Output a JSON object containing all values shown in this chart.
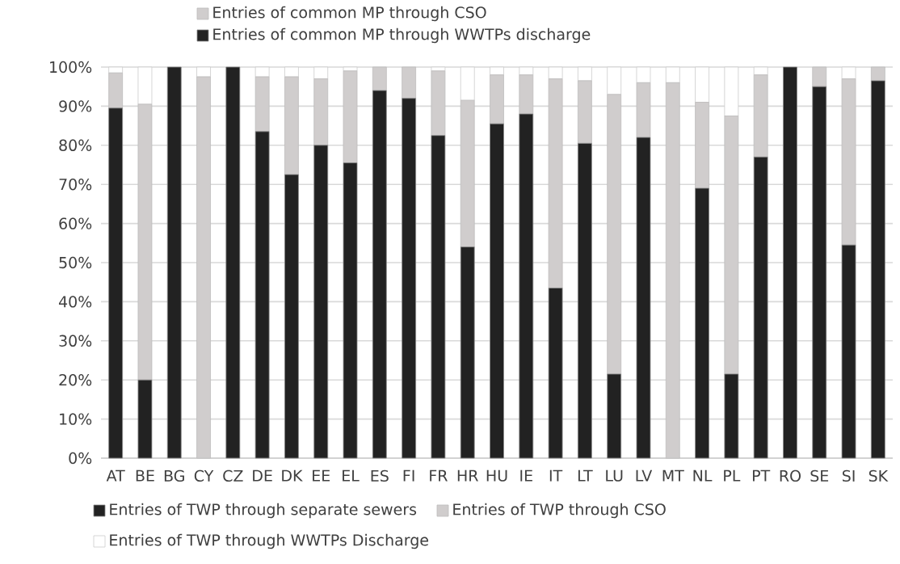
{
  "chart_data": {
    "type": "bar",
    "stacked": true,
    "categories": [
      "AT",
      "BE",
      "BG",
      "CY",
      "CZ",
      "DE",
      "DK",
      "EE",
      "EL",
      "ES",
      "FI",
      "FR",
      "HR",
      "HU",
      "IE",
      "IT",
      "LT",
      "LU",
      "LV",
      "MT",
      "NL",
      "PL",
      "PT",
      "RO",
      "SE",
      "SI",
      "SK"
    ],
    "series": [
      {
        "name": "Entries of TWP through separate sewers",
        "color": "#222222",
        "values": [
          89.5,
          20,
          100,
          0,
          100,
          83.5,
          72.5,
          80,
          75.5,
          94,
          92,
          82.5,
          54,
          85.5,
          88,
          43.5,
          80.5,
          21.5,
          82,
          0,
          69,
          21.5,
          77,
          100,
          95,
          54.5,
          96.5
        ]
      },
      {
        "name": "Entries of TWP through CSO",
        "color": "#d0cdcd",
        "values": [
          9,
          70.5,
          0,
          97.5,
          0,
          14,
          25,
          17,
          23.5,
          6,
          8,
          16.5,
          37.5,
          12.5,
          10,
          53.5,
          16,
          71.5,
          14,
          96,
          22,
          66,
          21,
          0,
          5,
          42.5,
          3.5
        ]
      },
      {
        "name": "Entries of TWP through WWTPs Discharge",
        "color": "#ffffff",
        "values": [
          1.5,
          9.5,
          0,
          2.5,
          0,
          2.5,
          2.5,
          3,
          1,
          0,
          0,
          1,
          8.5,
          2,
          2,
          3,
          3.5,
          7,
          4,
          4,
          9,
          12.5,
          2,
          0,
          0,
          3,
          0
        ]
      },
      {
        "name": "Entries of common MP through CSO",
        "color": "#d0cdcd",
        "values": [
          null,
          null,
          null,
          null,
          null,
          null,
          null,
          null,
          null,
          null,
          null,
          null,
          null,
          null,
          null,
          null,
          null,
          null,
          null,
          null,
          null,
          null,
          null,
          null,
          null,
          null,
          null
        ]
      },
      {
        "name": "Entries of common MP through WWTPs discharge",
        "color": "#222222",
        "values": [
          null,
          null,
          null,
          null,
          null,
          null,
          null,
          null,
          null,
          null,
          null,
          null,
          null,
          null,
          null,
          null,
          null,
          null,
          null,
          null,
          null,
          null,
          null,
          null,
          null,
          null,
          null
        ]
      }
    ],
    "ylim": [
      0,
      100
    ],
    "yticks": [
      {
        "value": 0,
        "label": "0%"
      },
      {
        "value": 10,
        "label": "10%"
      },
      {
        "value": 20,
        "label": "20%"
      },
      {
        "value": 30,
        "label": "30%"
      },
      {
        "value": 40,
        "label": "40%"
      },
      {
        "value": 50,
        "label": "50%"
      },
      {
        "value": 60,
        "label": "60%"
      },
      {
        "value": 70,
        "label": "70%"
      },
      {
        "value": 80,
        "label": "80%"
      },
      {
        "value": 90,
        "label": "90%"
      },
      {
        "value": 100,
        "label": "100%"
      }
    ],
    "grid": "y",
    "legend": "bottom"
  }
}
